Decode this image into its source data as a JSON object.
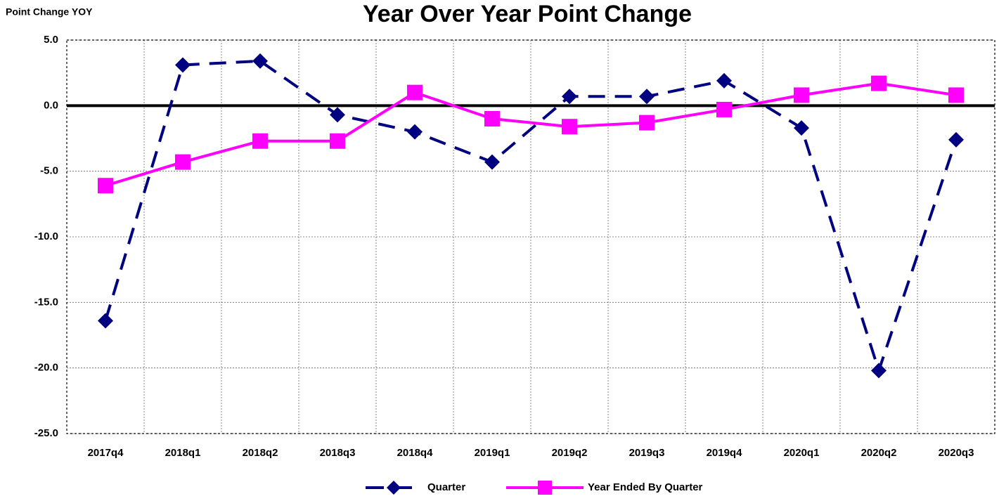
{
  "chart_data": {
    "type": "line",
    "title": "Year Over Year Point Change",
    "y_axis_label": "Point Change YOY",
    "categories": [
      "2017q4",
      "2018q1",
      "2018q2",
      "2018q3",
      "2018q4",
      "2019q1",
      "2019q2",
      "2019q3",
      "2019q4",
      "2020q1",
      "2020q2",
      "2020q3"
    ],
    "series": [
      {
        "name": "Quarter",
        "color": "#000080",
        "values": [
          -16.4,
          3.1,
          3.4,
          -0.7,
          -2.0,
          -4.3,
          0.7,
          0.7,
          1.9,
          -1.7,
          -20.2,
          -2.6
        ]
      },
      {
        "name": "Year Ended By Quarter",
        "color": "#ff00ff",
        "values": [
          -6.1,
          -4.3,
          -2.7,
          -2.7,
          1.0,
          -1.0,
          -1.6,
          -1.3,
          -0.3,
          0.8,
          1.7,
          0.8
        ]
      }
    ],
    "ylim": [
      -25,
      5
    ],
    "yticks": [
      {
        "value": -25,
        "label": "-25.0"
      },
      {
        "value": -20,
        "label": "-20.0"
      },
      {
        "value": -15,
        "label": "-15.0"
      },
      {
        "value": -10,
        "label": "-10.0"
      },
      {
        "value": -5,
        "label": "-5.0"
      },
      {
        "value": 0,
        "label": "0.0"
      },
      {
        "value": 5,
        "label": "5.0"
      }
    ],
    "grid": true,
    "legend": "bottom"
  }
}
